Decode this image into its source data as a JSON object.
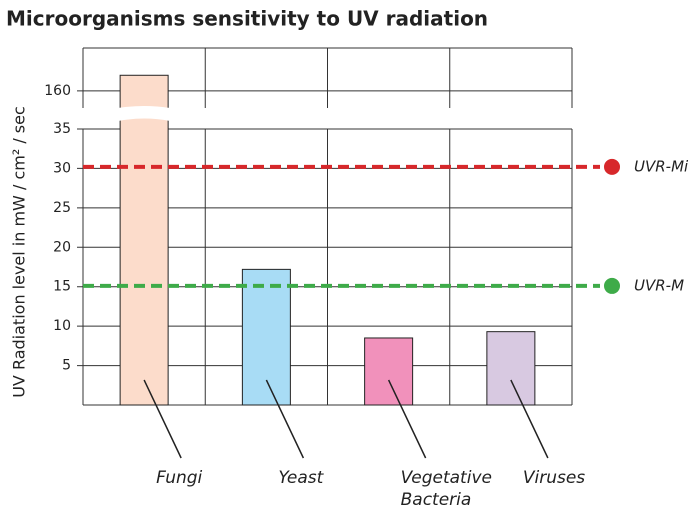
{
  "chart_data": {
    "type": "bar",
    "title": "Microorganisms sensitivity to UV radiation",
    "y_label": "UV Radiation level in  mW / cm² / sec",
    "categories": [
      "Fungi",
      "Yeast",
      "Vegetative Bacteria",
      "Viruses"
    ],
    "values": [
      162,
      17.2,
      8.5,
      9.3
    ],
    "colors": [
      "#fcdccb",
      "#a8dcf5",
      "#f191bb",
      "#d8c9e1"
    ],
    "axis_segments": [
      {
        "ylim": [
          0,
          35
        ],
        "yticks": [
          5,
          10,
          15,
          20,
          25,
          30,
          35
        ]
      },
      {
        "ylim": [
          157.8,
          165.5
        ],
        "yticks": [
          160
        ]
      }
    ],
    "grid": true,
    "reference_lines": [
      {
        "name": "UVR-Mi",
        "value": 30.2,
        "color": "#d7282b"
      },
      {
        "name": "UVR-M",
        "value": 15.1,
        "color": "#3eab49"
      }
    ]
  }
}
